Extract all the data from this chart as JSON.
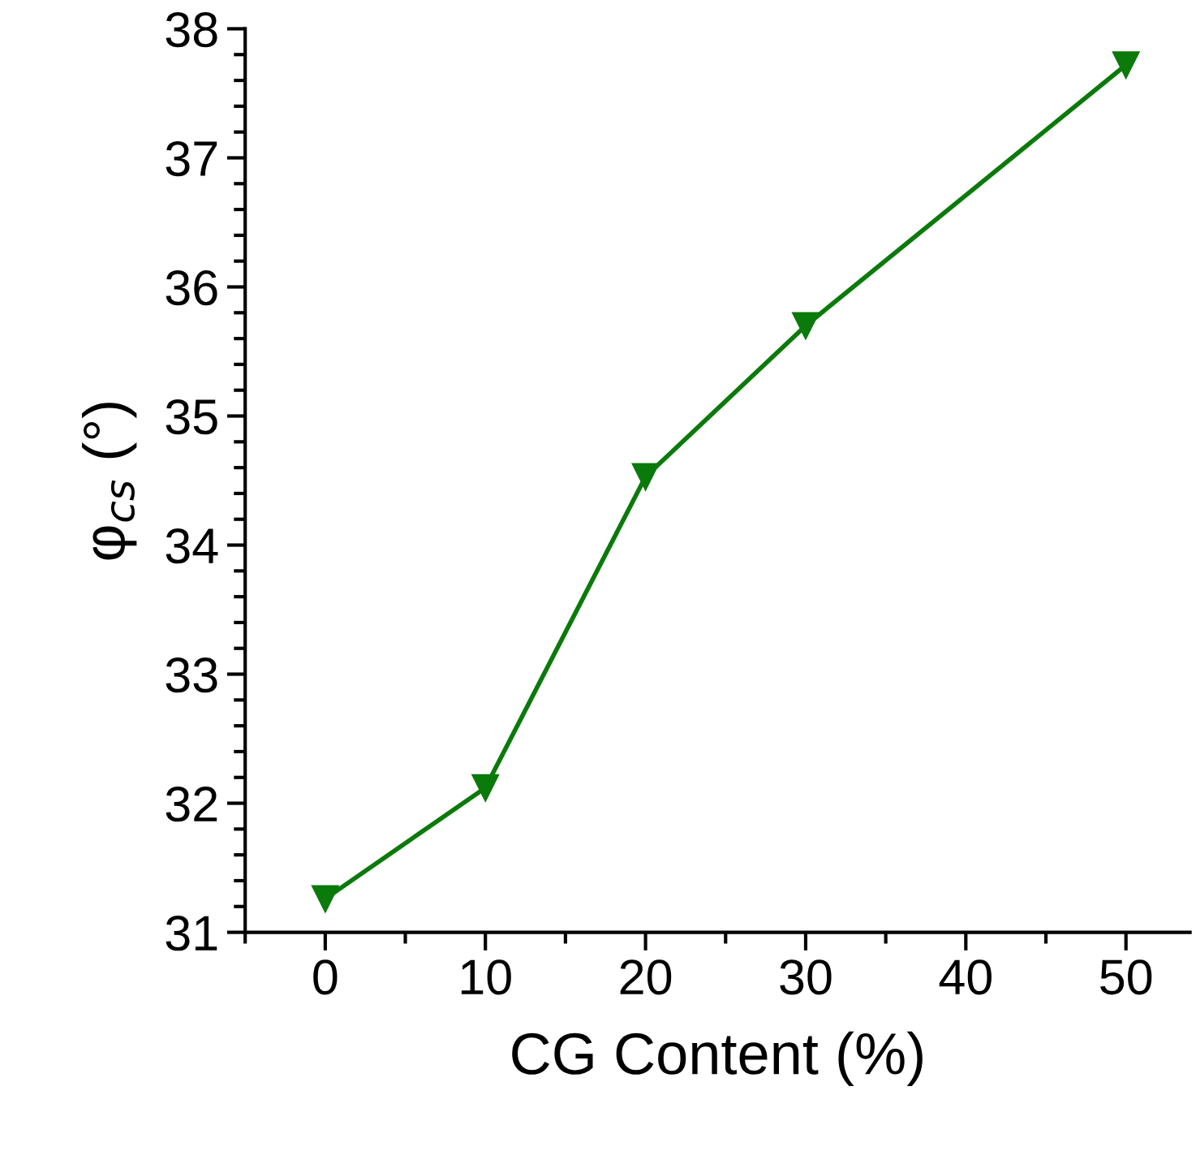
{
  "chart_data": {
    "type": "line",
    "xlabel": "CG Content (%)",
    "ylabel": "φ$_{cs}$ (°)",
    "x": [
      0,
      10,
      20,
      30,
      50
    ],
    "series": [
      {
        "color": "#0a7a0a",
        "values": [
          31.26,
          32.12,
          34.53,
          35.7,
          37.72
        ]
      }
    ],
    "xlim": [
      -5,
      54
    ],
    "ylim": [
      31,
      38
    ],
    "xticks": [
      0,
      10,
      20,
      30,
      40,
      50
    ],
    "yticks": [
      31,
      32,
      33,
      34,
      35,
      36,
      37,
      38
    ],
    "marker": "triangle_down",
    "line_style": "solid",
    "grid": false,
    "legend": false
  }
}
